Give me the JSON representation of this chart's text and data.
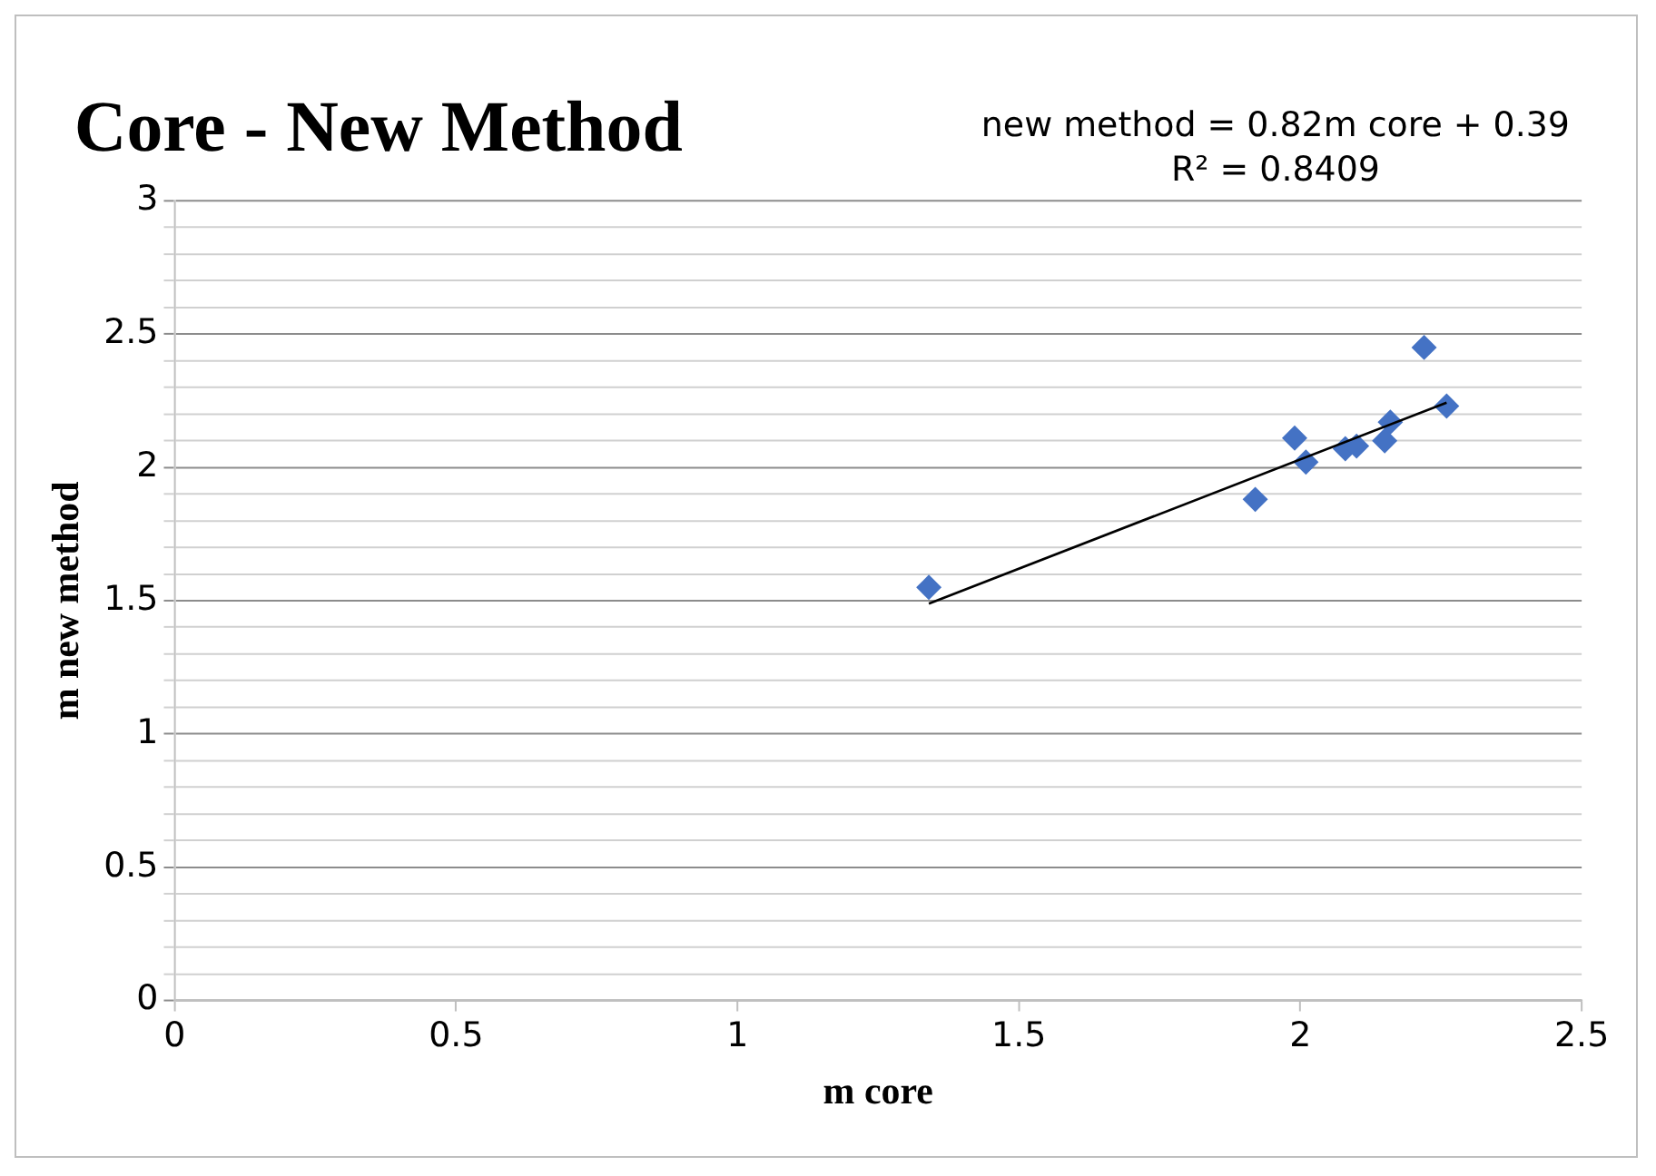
{
  "chart_data": {
    "type": "scatter",
    "title": "Core - New Method",
    "xlabel": "m core",
    "ylabel": "m new method",
    "annotations": [
      "new method = 0.82m core + 0.39",
      "R² = 0.8409"
    ],
    "series": [
      {
        "type": "scatter",
        "color": "#4472c4",
        "marker": "diamond",
        "x": [
          1.34,
          1.92,
          1.99,
          2.01,
          2.08,
          2.1,
          2.15,
          2.16,
          2.22,
          2.26
        ],
        "values": [
          1.55,
          1.88,
          2.11,
          2.02,
          2.07,
          2.08,
          2.1,
          2.17,
          2.45,
          2.23
        ]
      },
      {
        "type": "line",
        "color": "#000000",
        "marker": "none",
        "x": [
          1.34,
          2.26
        ],
        "values": [
          1.489,
          2.243
        ]
      }
    ],
    "xlim": [
      0,
      2.5
    ],
    "xticks": [
      0,
      0.5,
      1,
      1.5,
      2,
      2.5
    ],
    "ylim": [
      0,
      3
    ],
    "yticks": [
      0,
      {
        "value": 0.1,
        "label": null
      },
      {
        "value": 0.2,
        "label": null
      },
      {
        "value": 0.3,
        "label": null
      },
      {
        "value": 0.4,
        "label": null
      },
      0.5,
      {
        "value": 0.6,
        "label": null
      },
      {
        "value": 0.7,
        "label": null
      },
      {
        "value": 0.8,
        "label": null
      },
      {
        "value": 0.9,
        "label": null
      },
      1,
      {
        "value": 1.1,
        "label": null
      },
      {
        "value": 1.2,
        "label": null
      },
      {
        "value": 1.3,
        "label": null
      },
      {
        "value": 1.4,
        "label": null
      },
      1.5,
      {
        "value": 1.6,
        "label": null
      },
      {
        "value": 1.7,
        "label": null
      },
      {
        "value": 1.8,
        "label": null
      },
      {
        "value": 1.9,
        "label": null
      },
      2,
      {
        "value": 2.1,
        "label": null
      },
      {
        "value": 2.2,
        "label": null
      },
      {
        "value": 2.3,
        "label": null
      },
      {
        "value": 2.4,
        "label": null
      },
      2.5,
      {
        "value": 2.6,
        "label": null
      },
      {
        "value": 2.7,
        "label": null
      },
      {
        "value": 2.8,
        "label": null
      },
      {
        "value": 2.9,
        "label": null
      },
      3
    ],
    "grid": "y",
    "legend": false
  }
}
